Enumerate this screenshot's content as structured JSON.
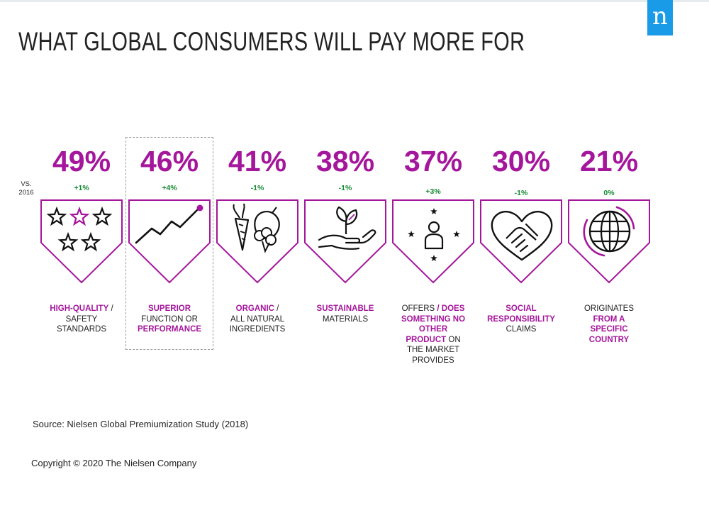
{
  "brand": {
    "logo_letter": "n",
    "color": "#1a9be8"
  },
  "title": "WHAT GLOBAL CONSUMERS WILL PAY MORE FOR",
  "vs_label": [
    "VS.",
    "2016"
  ],
  "colors": {
    "accent": "#a4169b",
    "change": "#168a33",
    "icon": "#111111"
  },
  "chart_data": {
    "type": "bar",
    "title": "WHAT GLOBAL CONSUMERS WILL PAY MORE FOR",
    "unit": "%",
    "series": [
      {
        "name": "",
        "values": [
          49,
          46,
          41,
          38,
          37,
          30,
          21
        ]
      }
    ],
    "categories": [
      "High-quality / safety standards",
      "Superior function or performance",
      "Organic / all natural ingredients",
      "Sustainable materials",
      "Offers / does something no other product on the market provides",
      "Social responsibility claims",
      "Originates from a specific country"
    ],
    "items": [
      {
        "id": "quality",
        "icon": "stars-icon",
        "value_label": "49%",
        "change": "+1%",
        "highlighted": false,
        "label": [
          [
            "HIGH-QUALITY",
            true
          ],
          [
            " / ",
            false
          ],
          [
            "SAFETY",
            false
          ],
          [
            "STANDARDS",
            false
          ]
        ]
      },
      {
        "id": "performance",
        "icon": "trend-line-icon",
        "value_label": "46%",
        "change": "+4%",
        "highlighted": true,
        "label": [
          [
            "SUPERIOR",
            true
          ],
          [
            "FUNCTION OR",
            false
          ],
          [
            "PERFORMANCE",
            true
          ]
        ]
      },
      {
        "id": "organic",
        "icon": "vegetables-icon",
        "value_label": "41%",
        "change": "-1%",
        "highlighted": false,
        "label": [
          [
            "ORGANIC",
            true
          ],
          [
            " /",
            false
          ],
          [
            "ALL NATURAL",
            false
          ],
          [
            "INGREDIENTS",
            false
          ]
        ]
      },
      {
        "id": "sustainable",
        "icon": "plant-in-hand-icon",
        "value_label": "38%",
        "change": "-1%",
        "highlighted": false,
        "label": [
          [
            "SUSTAINABLE",
            true
          ],
          [
            "MATERIALS",
            false
          ]
        ]
      },
      {
        "id": "unique",
        "icon": "person-with-stars-icon",
        "value_label": "37%",
        "change": "+3%",
        "highlighted": false,
        "label": [
          [
            "OFFERS ",
            false
          ],
          [
            "/ DOES",
            true
          ],
          [
            "SOMETHING NO",
            true
          ],
          [
            "OTHER",
            true
          ],
          [
            "PRODUCT",
            true
          ],
          [
            " ON",
            false
          ],
          [
            "THE MARKET",
            false
          ],
          [
            "PROVIDES",
            false
          ]
        ]
      },
      {
        "id": "social",
        "icon": "handshake-heart-icon",
        "value_label": "30%",
        "change": "-1%",
        "highlighted": false,
        "label": [
          [
            "SOCIAL",
            true
          ],
          [
            "RESPONSIBILITY",
            true
          ],
          [
            "CLAIMS",
            false
          ]
        ]
      },
      {
        "id": "origin",
        "icon": "globe-icon",
        "value_label": "21%",
        "change": "0%",
        "highlighted": false,
        "label": [
          [
            "ORIGINATES",
            false
          ],
          [
            "FROM A",
            true
          ],
          [
            "SPECIFIC",
            true
          ],
          [
            "COUNTRY",
            true
          ]
        ]
      }
    ]
  },
  "source": "Source: Nielsen Global Premiumization Study (2018)",
  "copyright": "Copyright © 2020 The Nielsen Company"
}
